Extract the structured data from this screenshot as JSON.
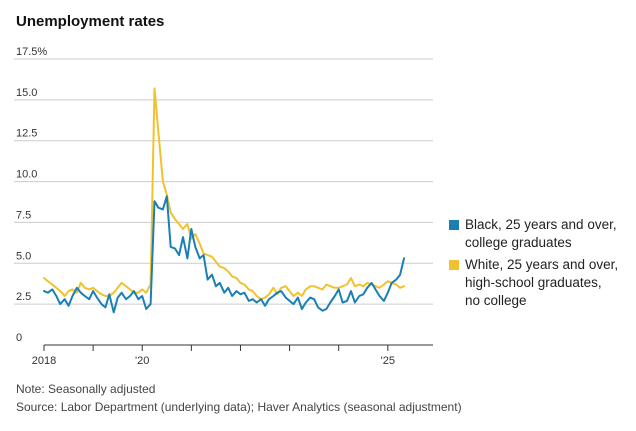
{
  "title": "Unemployment rates",
  "notes": {
    "note": "Note: Seasonally adjusted",
    "source": "Source: Labor Department (underlying data); Haver Analytics (seasonal adjustment)"
  },
  "colors": {
    "black_series": "#1a7fb5",
    "white_series": "#f0c22e",
    "axis": "#333333",
    "grid": "#cccccc"
  },
  "chart_data": {
    "type": "line",
    "title": "Unemployment rates",
    "xlabel": "",
    "ylabel": "",
    "xlim": [
      2018.0,
      2025.92
    ],
    "ylim": [
      0,
      17.5
    ],
    "y_ticks": [
      {
        "value": 0,
        "label": "0"
      },
      {
        "value": 2.5,
        "label": "2.5"
      },
      {
        "value": 5.0,
        "label": "5.0"
      },
      {
        "value": 7.5,
        "label": "7.5"
      },
      {
        "value": 10.0,
        "label": "10.0"
      },
      {
        "value": 12.5,
        "label": "12.5"
      },
      {
        "value": 15.0,
        "label": "15.0"
      },
      {
        "value": 17.5,
        "label": "17.5%"
      }
    ],
    "x_ticks": [
      {
        "value": 2018,
        "label": "2018"
      },
      {
        "value": 2019,
        "label": ""
      },
      {
        "value": 2020,
        "label": "'20"
      },
      {
        "value": 2021,
        "label": ""
      },
      {
        "value": 2022,
        "label": ""
      },
      {
        "value": 2023,
        "label": ""
      },
      {
        "value": 2024,
        "label": ""
      },
      {
        "value": 2025,
        "label": "'25"
      }
    ],
    "series": [
      {
        "name": "Black, 25 years and over, college graduates",
        "legend_lines": [
          "Black, 25 years and over,",
          "college graduates"
        ],
        "color": "#1a7fb5",
        "points": [
          [
            2018.0,
            3.3
          ],
          [
            2018.08,
            3.2
          ],
          [
            2018.17,
            3.4
          ],
          [
            2018.25,
            3.0
          ],
          [
            2018.33,
            2.5
          ],
          [
            2018.42,
            2.8
          ],
          [
            2018.5,
            2.4
          ],
          [
            2018.58,
            3.0
          ],
          [
            2018.67,
            3.5
          ],
          [
            2018.75,
            3.2
          ],
          [
            2018.83,
            3.0
          ],
          [
            2018.92,
            2.8
          ],
          [
            2019.0,
            3.3
          ],
          [
            2019.08,
            2.9
          ],
          [
            2019.17,
            2.5
          ],
          [
            2019.25,
            2.3
          ],
          [
            2019.33,
            3.1
          ],
          [
            2019.42,
            2.0
          ],
          [
            2019.5,
            2.9
          ],
          [
            2019.58,
            3.2
          ],
          [
            2019.67,
            2.8
          ],
          [
            2019.75,
            3.0
          ],
          [
            2019.83,
            3.3
          ],
          [
            2019.92,
            2.8
          ],
          [
            2020.0,
            3.0
          ],
          [
            2020.08,
            2.2
          ],
          [
            2020.17,
            2.5
          ],
          [
            2020.25,
            8.8
          ],
          [
            2020.33,
            8.4
          ],
          [
            2020.42,
            8.3
          ],
          [
            2020.5,
            9.1
          ],
          [
            2020.58,
            6.0
          ],
          [
            2020.67,
            5.9
          ],
          [
            2020.75,
            5.5
          ],
          [
            2020.83,
            6.6
          ],
          [
            2020.92,
            5.3
          ],
          [
            2021.0,
            7.1
          ],
          [
            2021.08,
            6.0
          ],
          [
            2021.17,
            5.3
          ],
          [
            2021.25,
            5.5
          ],
          [
            2021.33,
            4.0
          ],
          [
            2021.42,
            4.3
          ],
          [
            2021.5,
            3.6
          ],
          [
            2021.58,
            3.8
          ],
          [
            2021.67,
            3.2
          ],
          [
            2021.75,
            3.5
          ],
          [
            2021.83,
            3.0
          ],
          [
            2021.92,
            3.3
          ],
          [
            2022.0,
            3.1
          ],
          [
            2022.08,
            3.2
          ],
          [
            2022.17,
            2.7
          ],
          [
            2022.25,
            2.8
          ],
          [
            2022.33,
            2.6
          ],
          [
            2022.42,
            2.8
          ],
          [
            2022.5,
            2.4
          ],
          [
            2022.58,
            2.8
          ],
          [
            2022.67,
            3.0
          ],
          [
            2022.75,
            3.2
          ],
          [
            2022.83,
            3.3
          ],
          [
            2022.92,
            2.9
          ],
          [
            2023.0,
            2.7
          ],
          [
            2023.08,
            2.5
          ],
          [
            2023.17,
            2.9
          ],
          [
            2023.25,
            2.2
          ],
          [
            2023.33,
            2.6
          ],
          [
            2023.42,
            2.9
          ],
          [
            2023.5,
            2.8
          ],
          [
            2023.58,
            2.3
          ],
          [
            2023.67,
            2.1
          ],
          [
            2023.75,
            2.2
          ],
          [
            2023.83,
            2.6
          ],
          [
            2023.92,
            3.0
          ],
          [
            2024.0,
            3.4
          ],
          [
            2024.08,
            2.6
          ],
          [
            2024.17,
            2.7
          ],
          [
            2024.25,
            3.3
          ],
          [
            2024.33,
            2.6
          ],
          [
            2024.42,
            3.0
          ],
          [
            2024.5,
            3.1
          ],
          [
            2024.58,
            3.5
          ],
          [
            2024.67,
            3.8
          ],
          [
            2024.75,
            3.4
          ],
          [
            2024.83,
            3.0
          ],
          [
            2024.92,
            2.7
          ],
          [
            2025.0,
            3.2
          ],
          [
            2025.08,
            3.8
          ],
          [
            2025.17,
            4.0
          ],
          [
            2025.25,
            4.3
          ],
          [
            2025.33,
            5.3
          ]
        ]
      },
      {
        "name": "White, 25 years and over, high-school graduates, no college",
        "legend_lines": [
          "White, 25 years and over,",
          "high-school graduates,",
          "no college"
        ],
        "color": "#f0c22e",
        "points": [
          [
            2018.0,
            4.1
          ],
          [
            2018.08,
            3.9
          ],
          [
            2018.17,
            3.7
          ],
          [
            2018.25,
            3.5
          ],
          [
            2018.33,
            3.3
          ],
          [
            2018.42,
            3.0
          ],
          [
            2018.5,
            3.3
          ],
          [
            2018.58,
            3.4
          ],
          [
            2018.67,
            3.2
          ],
          [
            2018.75,
            3.8
          ],
          [
            2018.83,
            3.5
          ],
          [
            2018.92,
            3.4
          ],
          [
            2019.0,
            3.5
          ],
          [
            2019.08,
            3.3
          ],
          [
            2019.17,
            3.1
          ],
          [
            2019.25,
            3.0
          ],
          [
            2019.33,
            3.0
          ],
          [
            2019.42,
            3.2
          ],
          [
            2019.5,
            3.5
          ],
          [
            2019.58,
            3.8
          ],
          [
            2019.67,
            3.6
          ],
          [
            2019.75,
            3.4
          ],
          [
            2019.83,
            3.2
          ],
          [
            2019.92,
            3.2
          ],
          [
            2020.0,
            3.4
          ],
          [
            2020.08,
            3.2
          ],
          [
            2020.17,
            3.7
          ],
          [
            2020.25,
            15.7
          ],
          [
            2020.33,
            13.0
          ],
          [
            2020.42,
            10.0
          ],
          [
            2020.5,
            9.2
          ],
          [
            2020.58,
            8.1
          ],
          [
            2020.67,
            7.7
          ],
          [
            2020.75,
            7.4
          ],
          [
            2020.83,
            7.1
          ],
          [
            2020.92,
            7.4
          ],
          [
            2021.0,
            6.5
          ],
          [
            2021.08,
            6.8
          ],
          [
            2021.17,
            6.2
          ],
          [
            2021.25,
            5.6
          ],
          [
            2021.33,
            5.5
          ],
          [
            2021.42,
            5.4
          ],
          [
            2021.5,
            5.1
          ],
          [
            2021.58,
            4.8
          ],
          [
            2021.67,
            4.7
          ],
          [
            2021.75,
            4.5
          ],
          [
            2021.83,
            4.2
          ],
          [
            2021.92,
            4.1
          ],
          [
            2022.0,
            3.8
          ],
          [
            2022.08,
            3.7
          ],
          [
            2022.17,
            3.4
          ],
          [
            2022.25,
            3.3
          ],
          [
            2022.33,
            3.0
          ],
          [
            2022.42,
            2.8
          ],
          [
            2022.5,
            2.9
          ],
          [
            2022.58,
            3.1
          ],
          [
            2022.67,
            3.5
          ],
          [
            2022.75,
            3.1
          ],
          [
            2022.83,
            3.5
          ],
          [
            2022.92,
            3.6
          ],
          [
            2023.0,
            3.3
          ],
          [
            2023.08,
            3.0
          ],
          [
            2023.17,
            3.2
          ],
          [
            2023.25,
            3.0
          ],
          [
            2023.33,
            3.4
          ],
          [
            2023.42,
            3.6
          ],
          [
            2023.5,
            3.6
          ],
          [
            2023.58,
            3.5
          ],
          [
            2023.67,
            3.4
          ],
          [
            2023.75,
            3.7
          ],
          [
            2023.83,
            3.6
          ],
          [
            2023.92,
            3.5
          ],
          [
            2024.0,
            3.5
          ],
          [
            2024.08,
            3.6
          ],
          [
            2024.17,
            3.7
          ],
          [
            2024.25,
            4.1
          ],
          [
            2024.33,
            3.6
          ],
          [
            2024.42,
            3.7
          ],
          [
            2024.5,
            3.6
          ],
          [
            2024.58,
            3.8
          ],
          [
            2024.67,
            3.7
          ],
          [
            2024.75,
            3.6
          ],
          [
            2024.83,
            3.5
          ],
          [
            2024.92,
            3.7
          ],
          [
            2025.0,
            3.9
          ],
          [
            2025.08,
            3.8
          ],
          [
            2025.17,
            3.7
          ],
          [
            2025.25,
            3.5
          ],
          [
            2025.33,
            3.6
          ]
        ]
      }
    ]
  }
}
